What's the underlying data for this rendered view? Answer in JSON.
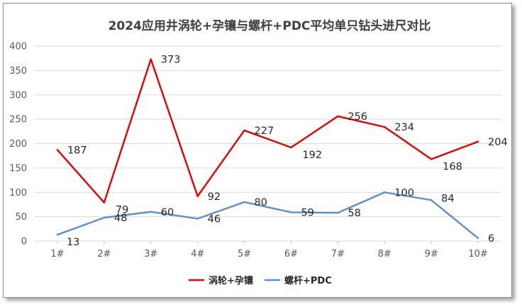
{
  "chart_data": {
    "type": "line",
    "title": "2024应用井涡轮+孕镶与螺杆+PDC平均单只钻头进尺对比",
    "xlabel": "",
    "ylabel": "",
    "categories": [
      "1#",
      "2#",
      "3#",
      "4#",
      "5#",
      "6#",
      "7#",
      "8#",
      "9#",
      "10#"
    ],
    "ylim": [
      0,
      400
    ],
    "yticks": [
      "0",
      "50",
      "100",
      "150",
      "200",
      "250",
      "300",
      "350",
      "400"
    ],
    "grid": true,
    "legend_position": "bottom",
    "series": [
      {
        "name": "涡轮+孕镶",
        "color": "#e60000",
        "values": [
          187,
          79,
          373,
          92,
          227,
          192,
          256,
          234,
          168,
          204
        ]
      },
      {
        "name": "螺杆+PDC",
        "color": "#5b8fd0",
        "values": [
          13,
          48,
          60,
          46,
          80,
          59,
          58,
          100,
          84,
          6
        ]
      }
    ]
  }
}
